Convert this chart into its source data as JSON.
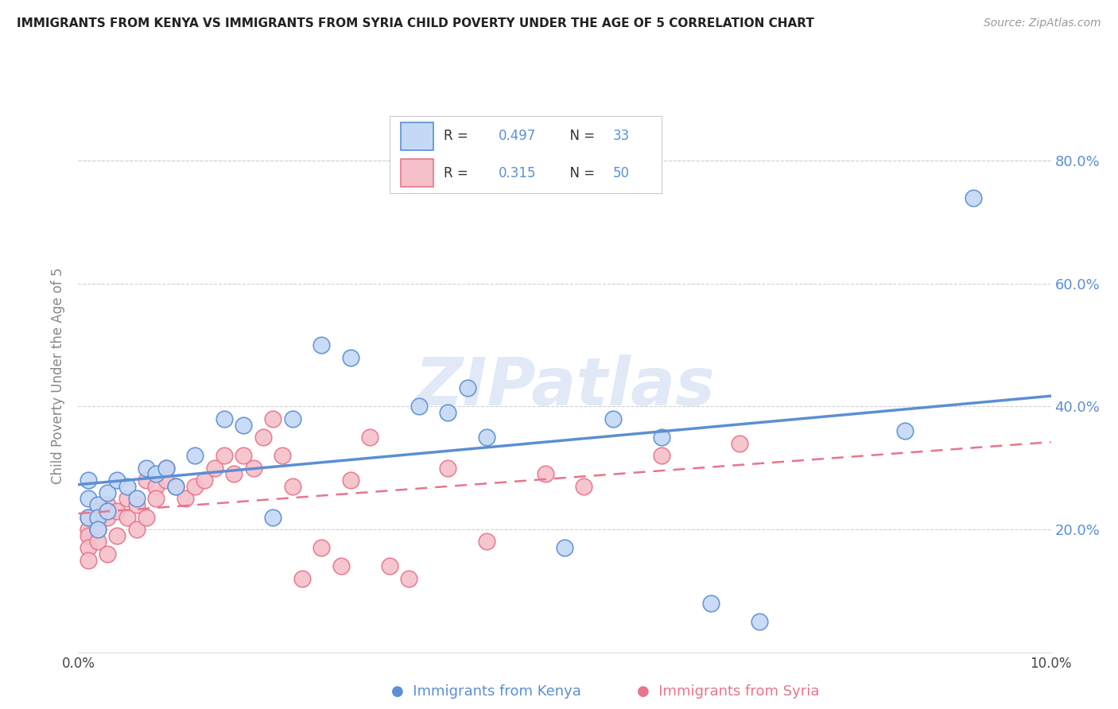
{
  "title": "IMMIGRANTS FROM KENYA VS IMMIGRANTS FROM SYRIA CHILD POVERTY UNDER THE AGE OF 5 CORRELATION CHART",
  "source": "Source: ZipAtlas.com",
  "ylabel": "Child Poverty Under the Age of 5",
  "xlim": [
    0.0,
    0.1
  ],
  "ylim": [
    0.0,
    0.9
  ],
  "yticks": [
    0.2,
    0.4,
    0.6,
    0.8
  ],
  "xticks": [
    0.0,
    0.02,
    0.04,
    0.06,
    0.08,
    0.1
  ],
  "background_color": "#ffffff",
  "kenya_color": "#5b8fd4",
  "kenya_fill": "#c5d8f5",
  "syria_color": "#e8758a",
  "syria_fill": "#f5c0ca",
  "kenya_R": 0.497,
  "kenya_N": 33,
  "syria_R": 0.315,
  "syria_N": 50,
  "watermark": "ZIPatlas",
  "kenya_scatter_x": [
    0.001,
    0.001,
    0.001,
    0.002,
    0.002,
    0.002,
    0.003,
    0.003,
    0.004,
    0.005,
    0.006,
    0.007,
    0.008,
    0.009,
    0.01,
    0.012,
    0.015,
    0.017,
    0.02,
    0.022,
    0.025,
    0.028,
    0.035,
    0.038,
    0.04,
    0.042,
    0.05,
    0.055,
    0.06,
    0.065,
    0.07,
    0.085,
    0.092
  ],
  "kenya_scatter_y": [
    0.22,
    0.25,
    0.28,
    0.24,
    0.22,
    0.2,
    0.26,
    0.23,
    0.28,
    0.27,
    0.25,
    0.3,
    0.29,
    0.3,
    0.27,
    0.32,
    0.38,
    0.37,
    0.22,
    0.38,
    0.5,
    0.48,
    0.4,
    0.39,
    0.43,
    0.35,
    0.17,
    0.38,
    0.35,
    0.08,
    0.05,
    0.36,
    0.74
  ],
  "syria_scatter_x": [
    0.001,
    0.001,
    0.001,
    0.001,
    0.001,
    0.002,
    0.002,
    0.002,
    0.002,
    0.003,
    0.003,
    0.003,
    0.004,
    0.004,
    0.005,
    0.005,
    0.006,
    0.006,
    0.007,
    0.007,
    0.008,
    0.008,
    0.009,
    0.009,
    0.01,
    0.011,
    0.012,
    0.013,
    0.014,
    0.015,
    0.016,
    0.017,
    0.018,
    0.019,
    0.02,
    0.021,
    0.022,
    0.023,
    0.025,
    0.027,
    0.028,
    0.03,
    0.032,
    0.034,
    0.038,
    0.042,
    0.048,
    0.052,
    0.06,
    0.068
  ],
  "syria_scatter_y": [
    0.22,
    0.2,
    0.19,
    0.17,
    0.15,
    0.21,
    0.23,
    0.2,
    0.18,
    0.24,
    0.22,
    0.16,
    0.23,
    0.19,
    0.25,
    0.22,
    0.24,
    0.2,
    0.28,
    0.22,
    0.27,
    0.25,
    0.3,
    0.28,
    0.27,
    0.25,
    0.27,
    0.28,
    0.3,
    0.32,
    0.29,
    0.32,
    0.3,
    0.35,
    0.38,
    0.32,
    0.27,
    0.12,
    0.17,
    0.14,
    0.28,
    0.35,
    0.14,
    0.12,
    0.3,
    0.18,
    0.29,
    0.27,
    0.32,
    0.34
  ],
  "grid_color": "#d0d0d0",
  "tick_label_color": "#5b8fd4",
  "axis_label_color": "#888888",
  "title_color": "#222222",
  "source_color": "#999999"
}
